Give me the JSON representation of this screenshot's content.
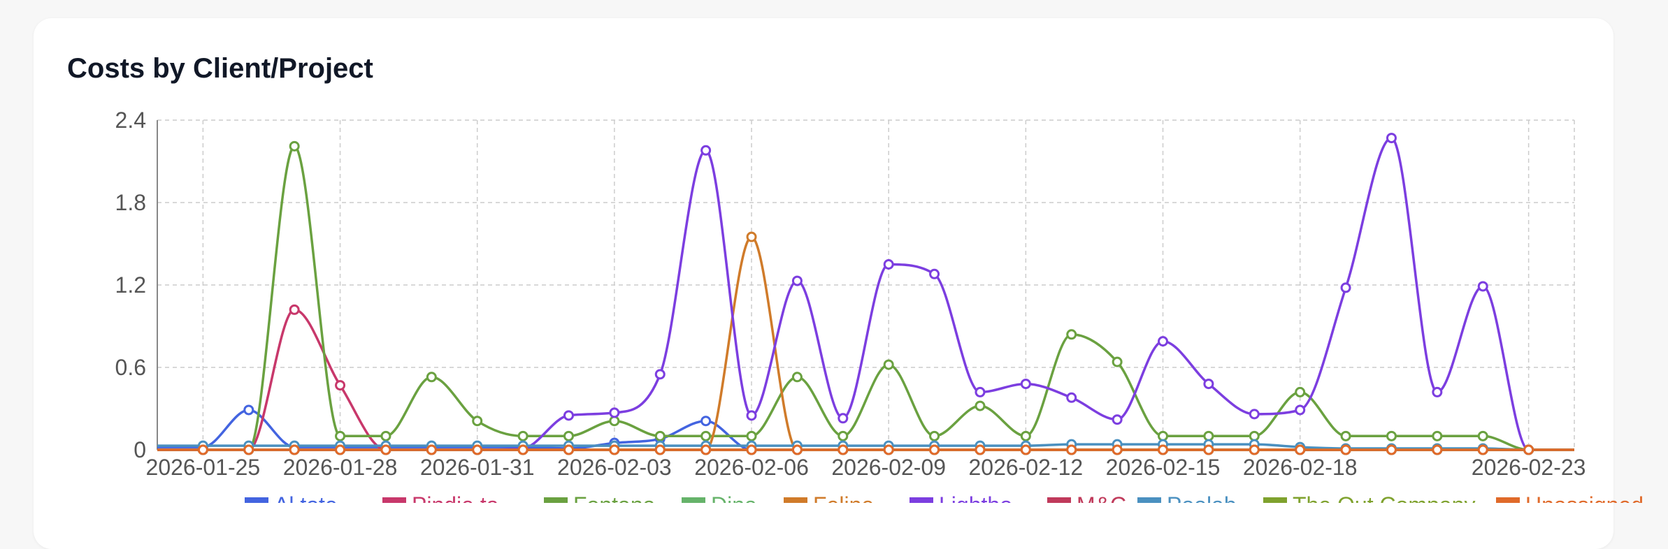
{
  "card": {
    "title": "Costs by Client/Project"
  },
  "chart_data": {
    "type": "line",
    "title": "",
    "xlabel": "",
    "ylabel": "",
    "ylim": [
      0,
      2.4
    ],
    "yticks": [
      "0",
      "0.6",
      "1.2",
      "1.8",
      "2.4"
    ],
    "xtick_labels": [
      "2026-01-25",
      "2026-01-28",
      "2026-01-31",
      "2026-02-03",
      "2026-02-06",
      "2026-02-09",
      "2026-02-12",
      "2026-02-15",
      "2026-02-18",
      "2026-02-23"
    ],
    "x": [
      "2026-01-24",
      "2026-01-25",
      "2026-01-26",
      "2026-01-27",
      "2026-01-28",
      "2026-01-29",
      "2026-01-30",
      "2026-01-31",
      "2026-02-01",
      "2026-02-02",
      "2026-02-03",
      "2026-02-04",
      "2026-02-05",
      "2026-02-06",
      "2026-02-07",
      "2026-02-08",
      "2026-02-09",
      "2026-02-10",
      "2026-02-11",
      "2026-02-12",
      "2026-02-13",
      "2026-02-14",
      "2026-02-15",
      "2026-02-16",
      "2026-02-17",
      "2026-02-18",
      "2026-02-19",
      "2026-02-20",
      "2026-02-21",
      "2026-02-22",
      "2026-02-23",
      "2026-02-24"
    ],
    "grid": true,
    "legend_position": "bottom",
    "series": [
      {
        "name": "Al tote",
        "color": "#4364e0",
        "values": [
          0.02,
          0.02,
          0.29,
          0.02,
          0.02,
          0.02,
          0.02,
          0.02,
          0.02,
          0.01,
          0.05,
          0.08,
          0.21,
          0,
          0,
          0,
          0,
          0,
          0,
          0,
          0,
          0,
          0,
          0,
          0,
          0,
          0,
          0,
          0,
          0,
          0,
          0
        ]
      },
      {
        "name": "Pindie ta",
        "color": "#c8386b",
        "values": [
          0,
          0,
          0,
          1.02,
          0.47,
          0,
          0,
          0,
          0,
          0,
          0,
          0,
          0,
          0,
          0,
          0,
          0,
          0,
          0,
          0,
          0,
          0,
          0,
          0,
          0,
          0,
          0,
          0,
          0,
          0,
          0,
          0
        ]
      },
      {
        "name": "Fontana",
        "color": "#6aa140",
        "values": [
          0,
          0,
          0,
          2.21,
          0.1,
          0.1,
          0.53,
          0.21,
          0.1,
          0.1,
          0.21,
          0.1,
          0.1,
          0.1,
          0.53,
          0.1,
          0.62,
          0.1,
          0.32,
          0.1,
          0.84,
          0.64,
          0.1,
          0.1,
          0.1,
          0.42,
          0.1,
          0.1,
          0.1,
          0.1,
          0,
          0
        ]
      },
      {
        "name": "Dina",
        "color": "#66b36a",
        "values": [
          0,
          0,
          0,
          0,
          0,
          0,
          0,
          0,
          0,
          0,
          0,
          0,
          0,
          0,
          0,
          0,
          0,
          0,
          0,
          0,
          0,
          0,
          0,
          0,
          0,
          0,
          0,
          0,
          0,
          0,
          0,
          0
        ]
      },
      {
        "name": "Feline",
        "color": "#d07b2a",
        "values": [
          0,
          0,
          0,
          0,
          0,
          0,
          0,
          0,
          0,
          0,
          0,
          0,
          0,
          1.55,
          0,
          0,
          0,
          0,
          0,
          0,
          0,
          0,
          0,
          0,
          0,
          0,
          0,
          0,
          0,
          0,
          0,
          0
        ]
      },
      {
        "name": "Lightho",
        "color": "#7c3ee0",
        "values": [
          0,
          0,
          0,
          0,
          0,
          0,
          0,
          0,
          0.01,
          0.25,
          0.27,
          0.55,
          2.18,
          0.25,
          1.23,
          0.23,
          1.35,
          1.28,
          0.42,
          0.48,
          0.38,
          0.22,
          0.79,
          0.48,
          0.26,
          0.29,
          1.18,
          2.27,
          0.42,
          1.19,
          0,
          0
        ]
      },
      {
        "name": "M&C",
        "color": "#c03a5b",
        "values": [
          0,
          0,
          0,
          0,
          0,
          0,
          0,
          0,
          0,
          0,
          0,
          0,
          0,
          0,
          0,
          0,
          0,
          0,
          0,
          0,
          0,
          0,
          0,
          0,
          0,
          0,
          0,
          0,
          0,
          0,
          0,
          0
        ]
      },
      {
        "name": "Poolab",
        "color": "#4a90c0",
        "values": [
          0.03,
          0.03,
          0.03,
          0.03,
          0.03,
          0.03,
          0.03,
          0.03,
          0.03,
          0.03,
          0.03,
          0.03,
          0.03,
          0.03,
          0.03,
          0.03,
          0.03,
          0.03,
          0.03,
          0.03,
          0.04,
          0.04,
          0.04,
          0.04,
          0.04,
          0.02,
          0.01,
          0.01,
          0.01,
          0.01,
          0,
          0
        ]
      },
      {
        "name": "The Out Company",
        "color": "#7fa22e",
        "values": [
          0,
          0,
          0,
          0,
          0,
          0,
          0,
          0,
          0,
          0,
          0,
          0,
          0,
          0,
          0,
          0,
          0,
          0,
          0,
          0,
          0,
          0,
          0,
          0,
          0,
          0,
          0,
          0,
          0,
          0,
          0,
          0
        ]
      },
      {
        "name": "Unassigned",
        "color": "#e06a2a",
        "values": [
          0,
          0,
          0,
          0,
          0,
          0,
          0,
          0,
          0,
          0,
          0,
          0,
          0,
          0,
          0,
          0,
          0,
          0,
          0,
          0,
          0,
          0,
          0,
          0,
          0,
          0,
          0,
          0,
          0,
          0,
          0,
          0
        ]
      }
    ]
  }
}
